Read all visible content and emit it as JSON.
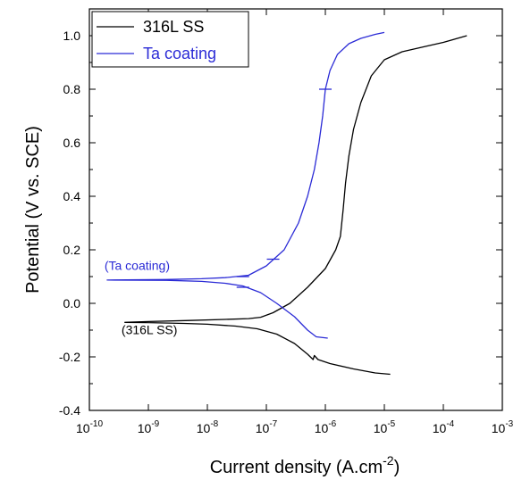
{
  "chart_data": {
    "type": "line",
    "xlabel_main": "Current density (A.cm",
    "xlabel_sup": "-2",
    "xlabel_end": ")",
    "ylabel": "Potential (V vs. SCE)",
    "x_scale": "log",
    "xlim": [
      1e-10,
      0.001
    ],
    "ylim": [
      -0.4,
      1.1
    ],
    "x_ticks": [
      {
        "value": 1e-10,
        "base": "10",
        "exp": "-10"
      },
      {
        "value": 1e-09,
        "base": "10",
        "exp": "-9"
      },
      {
        "value": 1e-08,
        "base": "10",
        "exp": "-8"
      },
      {
        "value": 1e-07,
        "base": "10",
        "exp": "-7"
      },
      {
        "value": 1e-06,
        "base": "10",
        "exp": "-6"
      },
      {
        "value": 1e-05,
        "base": "10",
        "exp": "-5"
      },
      {
        "value": 0.0001,
        "base": "10",
        "exp": "-4"
      },
      {
        "value": 0.001,
        "base": "10",
        "exp": "-3"
      }
    ],
    "y_ticks": [
      {
        "value": -0.4,
        "label": "-0.4"
      },
      {
        "value": -0.2,
        "label": "-0.2"
      },
      {
        "value": 0.0,
        "label": "0.0"
      },
      {
        "value": 0.2,
        "label": "0.2"
      },
      {
        "value": 0.4,
        "label": "0.4"
      },
      {
        "value": 0.6,
        "label": "0.6"
      },
      {
        "value": 0.8,
        "label": "0.8"
      },
      {
        "value": 1.0,
        "label": "1.0"
      }
    ],
    "grid": false,
    "legend_position": "top-left",
    "series": [
      {
        "name": "316L SS",
        "color": "#000000",
        "points": [
          [
            1.26e-05,
            -0.265
          ],
          [
            7e-06,
            -0.26
          ],
          [
            3e-06,
            -0.245
          ],
          [
            1.2e-06,
            -0.225
          ],
          [
            7.5e-07,
            -0.21
          ],
          [
            6.5e-07,
            -0.195
          ],
          [
            6.2e-07,
            -0.21
          ],
          [
            5e-07,
            -0.19
          ],
          [
            3e-07,
            -0.15
          ],
          [
            1.5e-07,
            -0.115
          ],
          [
            7e-08,
            -0.095
          ],
          [
            3e-08,
            -0.085
          ],
          [
            1e-08,
            -0.078
          ],
          [
            4e-09,
            -0.075
          ],
          [
            1e-09,
            -0.072
          ],
          [
            4e-10,
            -0.071
          ],
          [
            1e-09,
            -0.068
          ],
          [
            5e-09,
            -0.064
          ],
          [
            2e-08,
            -0.06
          ],
          [
            5e-08,
            -0.057
          ],
          [
            8e-08,
            -0.052
          ],
          [
            1.3e-07,
            -0.035
          ],
          [
            2.5e-07,
            0.0
          ],
          [
            5e-07,
            0.06
          ],
          [
            1e-06,
            0.13
          ],
          [
            1.5e-06,
            0.2
          ],
          [
            1.8e-06,
            0.25
          ],
          [
            2e-06,
            0.35
          ],
          [
            2.2e-06,
            0.45
          ],
          [
            2.5e-06,
            0.55
          ],
          [
            3e-06,
            0.65
          ],
          [
            4e-06,
            0.75
          ],
          [
            6e-06,
            0.85
          ],
          [
            1e-05,
            0.91
          ],
          [
            2e-05,
            0.94
          ],
          [
            5e-05,
            0.96
          ],
          [
            0.0001,
            0.975
          ],
          [
            0.00025,
            1.0
          ]
        ]
      },
      {
        "name": "Ta coating",
        "color": "#2b2bd6",
        "points": [
          [
            1.1e-06,
            -0.13
          ],
          [
            7e-07,
            -0.125
          ],
          [
            5e-07,
            -0.1
          ],
          [
            3e-07,
            -0.05
          ],
          [
            1.5e-07,
            0.0
          ],
          [
            8e-08,
            0.04
          ],
          [
            4e-08,
            0.065
          ],
          [
            2e-08,
            0.075
          ],
          [
            8e-09,
            0.082
          ],
          [
            2e-09,
            0.086
          ],
          [
            2e-10,
            0.087
          ],
          [
            2e-09,
            0.089
          ],
          [
            8e-09,
            0.092
          ],
          [
            2e-08,
            0.096
          ],
          [
            5e-08,
            0.105
          ],
          [
            1e-07,
            0.14
          ],
          [
            2e-07,
            0.2
          ],
          [
            3.5e-07,
            0.3
          ],
          [
            5e-07,
            0.4
          ],
          [
            6.5e-07,
            0.5
          ],
          [
            7.8e-07,
            0.6
          ],
          [
            9e-07,
            0.7
          ],
          [
            1e-06,
            0.8
          ],
          [
            1.2e-06,
            0.87
          ],
          [
            1.6e-06,
            0.93
          ],
          [
            2.5e-06,
            0.97
          ],
          [
            4e-06,
            0.99
          ],
          [
            7e-06,
            1.005
          ],
          [
            1e-05,
            1.012
          ]
        ]
      }
    ],
    "annotations": [
      {
        "text": "(Ta coating)",
        "x": 1.8e-10,
        "y": 0.125,
        "color": "#2b2bd6"
      },
      {
        "text": "(316L SS)",
        "x": 3.5e-10,
        "y": -0.115,
        "color": "#000000"
      }
    ]
  }
}
